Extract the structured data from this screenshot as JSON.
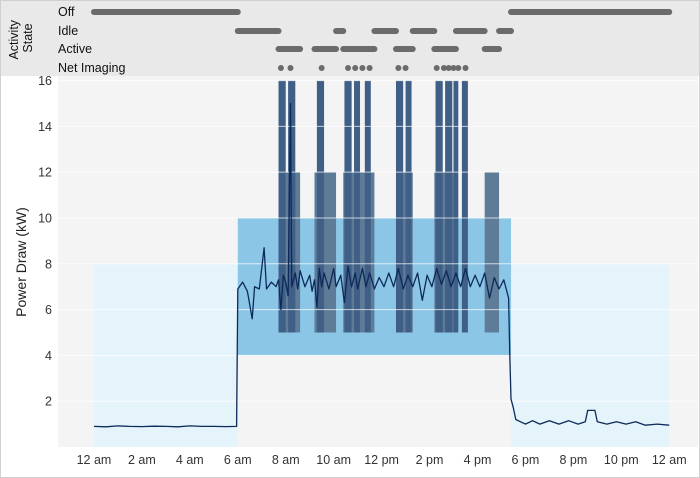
{
  "chart_data": {
    "type": "line",
    "ylabel": "Power Draw (kW)",
    "state_panel_title": "Activity State",
    "state_panel_title_lines": [
      "Activity",
      "State"
    ],
    "x_ticks": [
      {
        "value": 0,
        "label": "12 am"
      },
      {
        "value": 2,
        "label": "2 am"
      },
      {
        "value": 4,
        "label": "4 am"
      },
      {
        "value": 6,
        "label": "6 am"
      },
      {
        "value": 8,
        "label": "8 am"
      },
      {
        "value": 10,
        "label": "10 am"
      },
      {
        "value": 12,
        "label": "12 pm"
      },
      {
        "value": 14,
        "label": "2 pm"
      },
      {
        "value": 16,
        "label": "4 pm"
      },
      {
        "value": 18,
        "label": "6 pm"
      },
      {
        "value": 20,
        "label": "8 pm"
      },
      {
        "value": 22,
        "label": "10 pm"
      },
      {
        "value": 24,
        "label": "12 am"
      }
    ],
    "xlim": [
      -1.5,
      25.2
    ],
    "y_ticks": [
      2,
      4,
      6,
      8,
      10,
      12,
      14,
      16
    ],
    "ylim": [
      0,
      16.2
    ],
    "states": [
      {
        "name": "Off",
        "intervals": [
          [
            0,
            6
          ],
          [
            17.4,
            24
          ]
        ]
      },
      {
        "name": "Idle",
        "intervals": [
          [
            6,
            7.7
          ],
          [
            10.1,
            10.4
          ],
          [
            11.7,
            12.6
          ],
          [
            13.3,
            14.2
          ],
          [
            15.1,
            16.3
          ],
          [
            16.9,
            17.4
          ]
        ]
      },
      {
        "name": "Active",
        "intervals": [
          [
            7.7,
            8.6
          ],
          [
            9.2,
            10.1
          ],
          [
            10.4,
            11.7
          ],
          [
            12.6,
            13.3
          ],
          [
            14.2,
            15.1
          ],
          [
            16.3,
            16.9
          ]
        ]
      },
      {
        "name": "Net Imaging",
        "points": [
          7.8,
          8.2,
          9.5,
          10.6,
          10.9,
          11.2,
          11.5,
          12.7,
          13.0,
          14.3,
          14.6,
          14.8,
          15.0,
          15.2,
          15.5
        ]
      }
    ],
    "range_bands": [
      {
        "state": "Off",
        "color": "#e5f3fb",
        "x": [
          0,
          6
        ],
        "y": [
          0,
          8
        ]
      },
      {
        "state": "Off",
        "color": "#e5f3fb",
        "x": [
          17.4,
          24
        ],
        "y": [
          0,
          8
        ]
      },
      {
        "state": "Idle",
        "color": "#8cc6e7",
        "x": [
          6,
          17.4
        ],
        "y": [
          4,
          10
        ]
      },
      {
        "state": "Active",
        "color": "#5e7c98",
        "x": [
          7.7,
          8.6
        ],
        "y": [
          5,
          12
        ]
      },
      {
        "state": "Active",
        "color": "#5e7c98",
        "x": [
          9.2,
          10.1
        ],
        "y": [
          5,
          12
        ]
      },
      {
        "state": "Active",
        "color": "#5e7c98",
        "x": [
          10.4,
          11.7
        ],
        "y": [
          5,
          12
        ]
      },
      {
        "state": "Active",
        "color": "#5e7c98",
        "x": [
          12.6,
          13.3
        ],
        "y": [
          5,
          12
        ]
      },
      {
        "state": "Active",
        "color": "#5e7c98",
        "x": [
          14.2,
          15.1
        ],
        "y": [
          5,
          12
        ]
      },
      {
        "state": "Active",
        "color": "#5e7c98",
        "x": [
          16.3,
          16.9
        ],
        "y": [
          5,
          12
        ]
      },
      {
        "state": "Net Imaging",
        "color": "#3f5f86",
        "x": [
          7.7,
          8.0
        ],
        "y": [
          5,
          16
        ]
      },
      {
        "state": "Net Imaging",
        "color": "#3f5f86",
        "x": [
          8.1,
          8.4
        ],
        "y": [
          5,
          16
        ]
      },
      {
        "state": "Net Imaging",
        "color": "#3f5f86",
        "x": [
          9.3,
          9.6
        ],
        "y": [
          5,
          16
        ]
      },
      {
        "state": "Net Imaging",
        "color": "#3f5f86",
        "x": [
          10.45,
          10.75
        ],
        "y": [
          5,
          16
        ]
      },
      {
        "state": "Net Imaging",
        "color": "#3f5f86",
        "x": [
          10.85,
          11.1
        ],
        "y": [
          5,
          16
        ]
      },
      {
        "state": "Net Imaging",
        "color": "#3f5f86",
        "x": [
          11.3,
          11.55
        ],
        "y": [
          5,
          16
        ]
      },
      {
        "state": "Net Imaging",
        "color": "#3f5f86",
        "x": [
          12.6,
          12.9
        ],
        "y": [
          5,
          16
        ]
      },
      {
        "state": "Net Imaging",
        "color": "#3f5f86",
        "x": [
          13.0,
          13.25
        ],
        "y": [
          5,
          16
        ]
      },
      {
        "state": "Net Imaging",
        "color": "#3f5f86",
        "x": [
          14.25,
          14.55
        ],
        "y": [
          5,
          16
        ]
      },
      {
        "state": "Net Imaging",
        "color": "#3f5f86",
        "x": [
          14.65,
          14.95
        ],
        "y": [
          5,
          16
        ]
      },
      {
        "state": "Net Imaging",
        "color": "#3f5f86",
        "x": [
          15.0,
          15.2
        ],
        "y": [
          5,
          16
        ]
      },
      {
        "state": "Net Imaging",
        "color": "#3f5f86",
        "x": [
          15.35,
          15.6
        ],
        "y": [
          5,
          16
        ]
      }
    ],
    "series": [
      {
        "color": "#0d2a5a",
        "points": [
          [
            0,
            0.9
          ],
          [
            0.5,
            0.88
          ],
          [
            1,
            0.92
          ],
          [
            1.5,
            0.9
          ],
          [
            2,
            0.89
          ],
          [
            2.5,
            0.91
          ],
          [
            3,
            0.9
          ],
          [
            3.5,
            0.88
          ],
          [
            4,
            0.92
          ],
          [
            4.5,
            0.9
          ],
          [
            5,
            0.9
          ],
          [
            5.5,
            0.89
          ],
          [
            5.95,
            0.9
          ],
          [
            6.0,
            6.9
          ],
          [
            6.2,
            7.2
          ],
          [
            6.4,
            6.8
          ],
          [
            6.6,
            5.6
          ],
          [
            6.7,
            7.0
          ],
          [
            6.9,
            6.9
          ],
          [
            7.1,
            8.7
          ],
          [
            7.2,
            6.9
          ],
          [
            7.4,
            7.2
          ],
          [
            7.6,
            7.0
          ],
          [
            7.7,
            7.3
          ],
          [
            7.8,
            6.0
          ],
          [
            7.9,
            7.5
          ],
          [
            8.0,
            7.2
          ],
          [
            8.1,
            6.6
          ],
          [
            8.2,
            15.0
          ],
          [
            8.25,
            7.0
          ],
          [
            8.4,
            7.6
          ],
          [
            8.5,
            6.9
          ],
          [
            8.6,
            7.7
          ],
          [
            8.8,
            7.0
          ],
          [
            9.0,
            7.5
          ],
          [
            9.1,
            6.8
          ],
          [
            9.2,
            7.3
          ],
          [
            9.3,
            6.1
          ],
          [
            9.4,
            7.8
          ],
          [
            9.5,
            7.0
          ],
          [
            9.6,
            7.6
          ],
          [
            9.8,
            6.9
          ],
          [
            10.0,
            7.8
          ],
          [
            10.1,
            7.0
          ],
          [
            10.3,
            7.5
          ],
          [
            10.45,
            6.3
          ],
          [
            10.6,
            7.9
          ],
          [
            10.75,
            7.0
          ],
          [
            10.9,
            7.6
          ],
          [
            11.0,
            6.9
          ],
          [
            11.2,
            7.8
          ],
          [
            11.35,
            7.0
          ],
          [
            11.5,
            7.6
          ],
          [
            11.7,
            6.9
          ],
          [
            11.9,
            7.4
          ],
          [
            12.1,
            7.0
          ],
          [
            12.3,
            7.6
          ],
          [
            12.5,
            7.0
          ],
          [
            12.7,
            7.8
          ],
          [
            12.9,
            6.9
          ],
          [
            13.1,
            7.5
          ],
          [
            13.3,
            7.0
          ],
          [
            13.5,
            7.6
          ],
          [
            13.7,
            6.4
          ],
          [
            13.9,
            7.5
          ],
          [
            14.1,
            7.0
          ],
          [
            14.3,
            7.8
          ],
          [
            14.5,
            7.1
          ],
          [
            14.7,
            7.7
          ],
          [
            14.9,
            7.0
          ],
          [
            15.1,
            7.6
          ],
          [
            15.3,
            7.0
          ],
          [
            15.5,
            7.8
          ],
          [
            15.7,
            7.0
          ],
          [
            15.9,
            7.5
          ],
          [
            16.1,
            7.0
          ],
          [
            16.3,
            7.6
          ],
          [
            16.5,
            6.5
          ],
          [
            16.7,
            7.4
          ],
          [
            16.9,
            6.9
          ],
          [
            17.1,
            7.3
          ],
          [
            17.3,
            6.5
          ],
          [
            17.35,
            4.0
          ],
          [
            17.4,
            2.1
          ],
          [
            17.5,
            1.7
          ],
          [
            17.6,
            1.2
          ],
          [
            17.8,
            1.1
          ],
          [
            18.0,
            1.0
          ],
          [
            18.3,
            1.15
          ],
          [
            18.6,
            1.0
          ],
          [
            19.0,
            1.15
          ],
          [
            19.4,
            1.0
          ],
          [
            19.8,
            1.15
          ],
          [
            20.2,
            1.0
          ],
          [
            20.5,
            1.1
          ],
          [
            20.6,
            1.6
          ],
          [
            20.9,
            1.6
          ],
          [
            21.0,
            1.1
          ],
          [
            21.4,
            1.0
          ],
          [
            21.8,
            1.1
          ],
          [
            22.2,
            1.0
          ],
          [
            22.6,
            1.1
          ],
          [
            23.0,
            0.95
          ],
          [
            23.5,
            1.0
          ],
          [
            24.0,
            0.95
          ]
        ]
      }
    ]
  }
}
